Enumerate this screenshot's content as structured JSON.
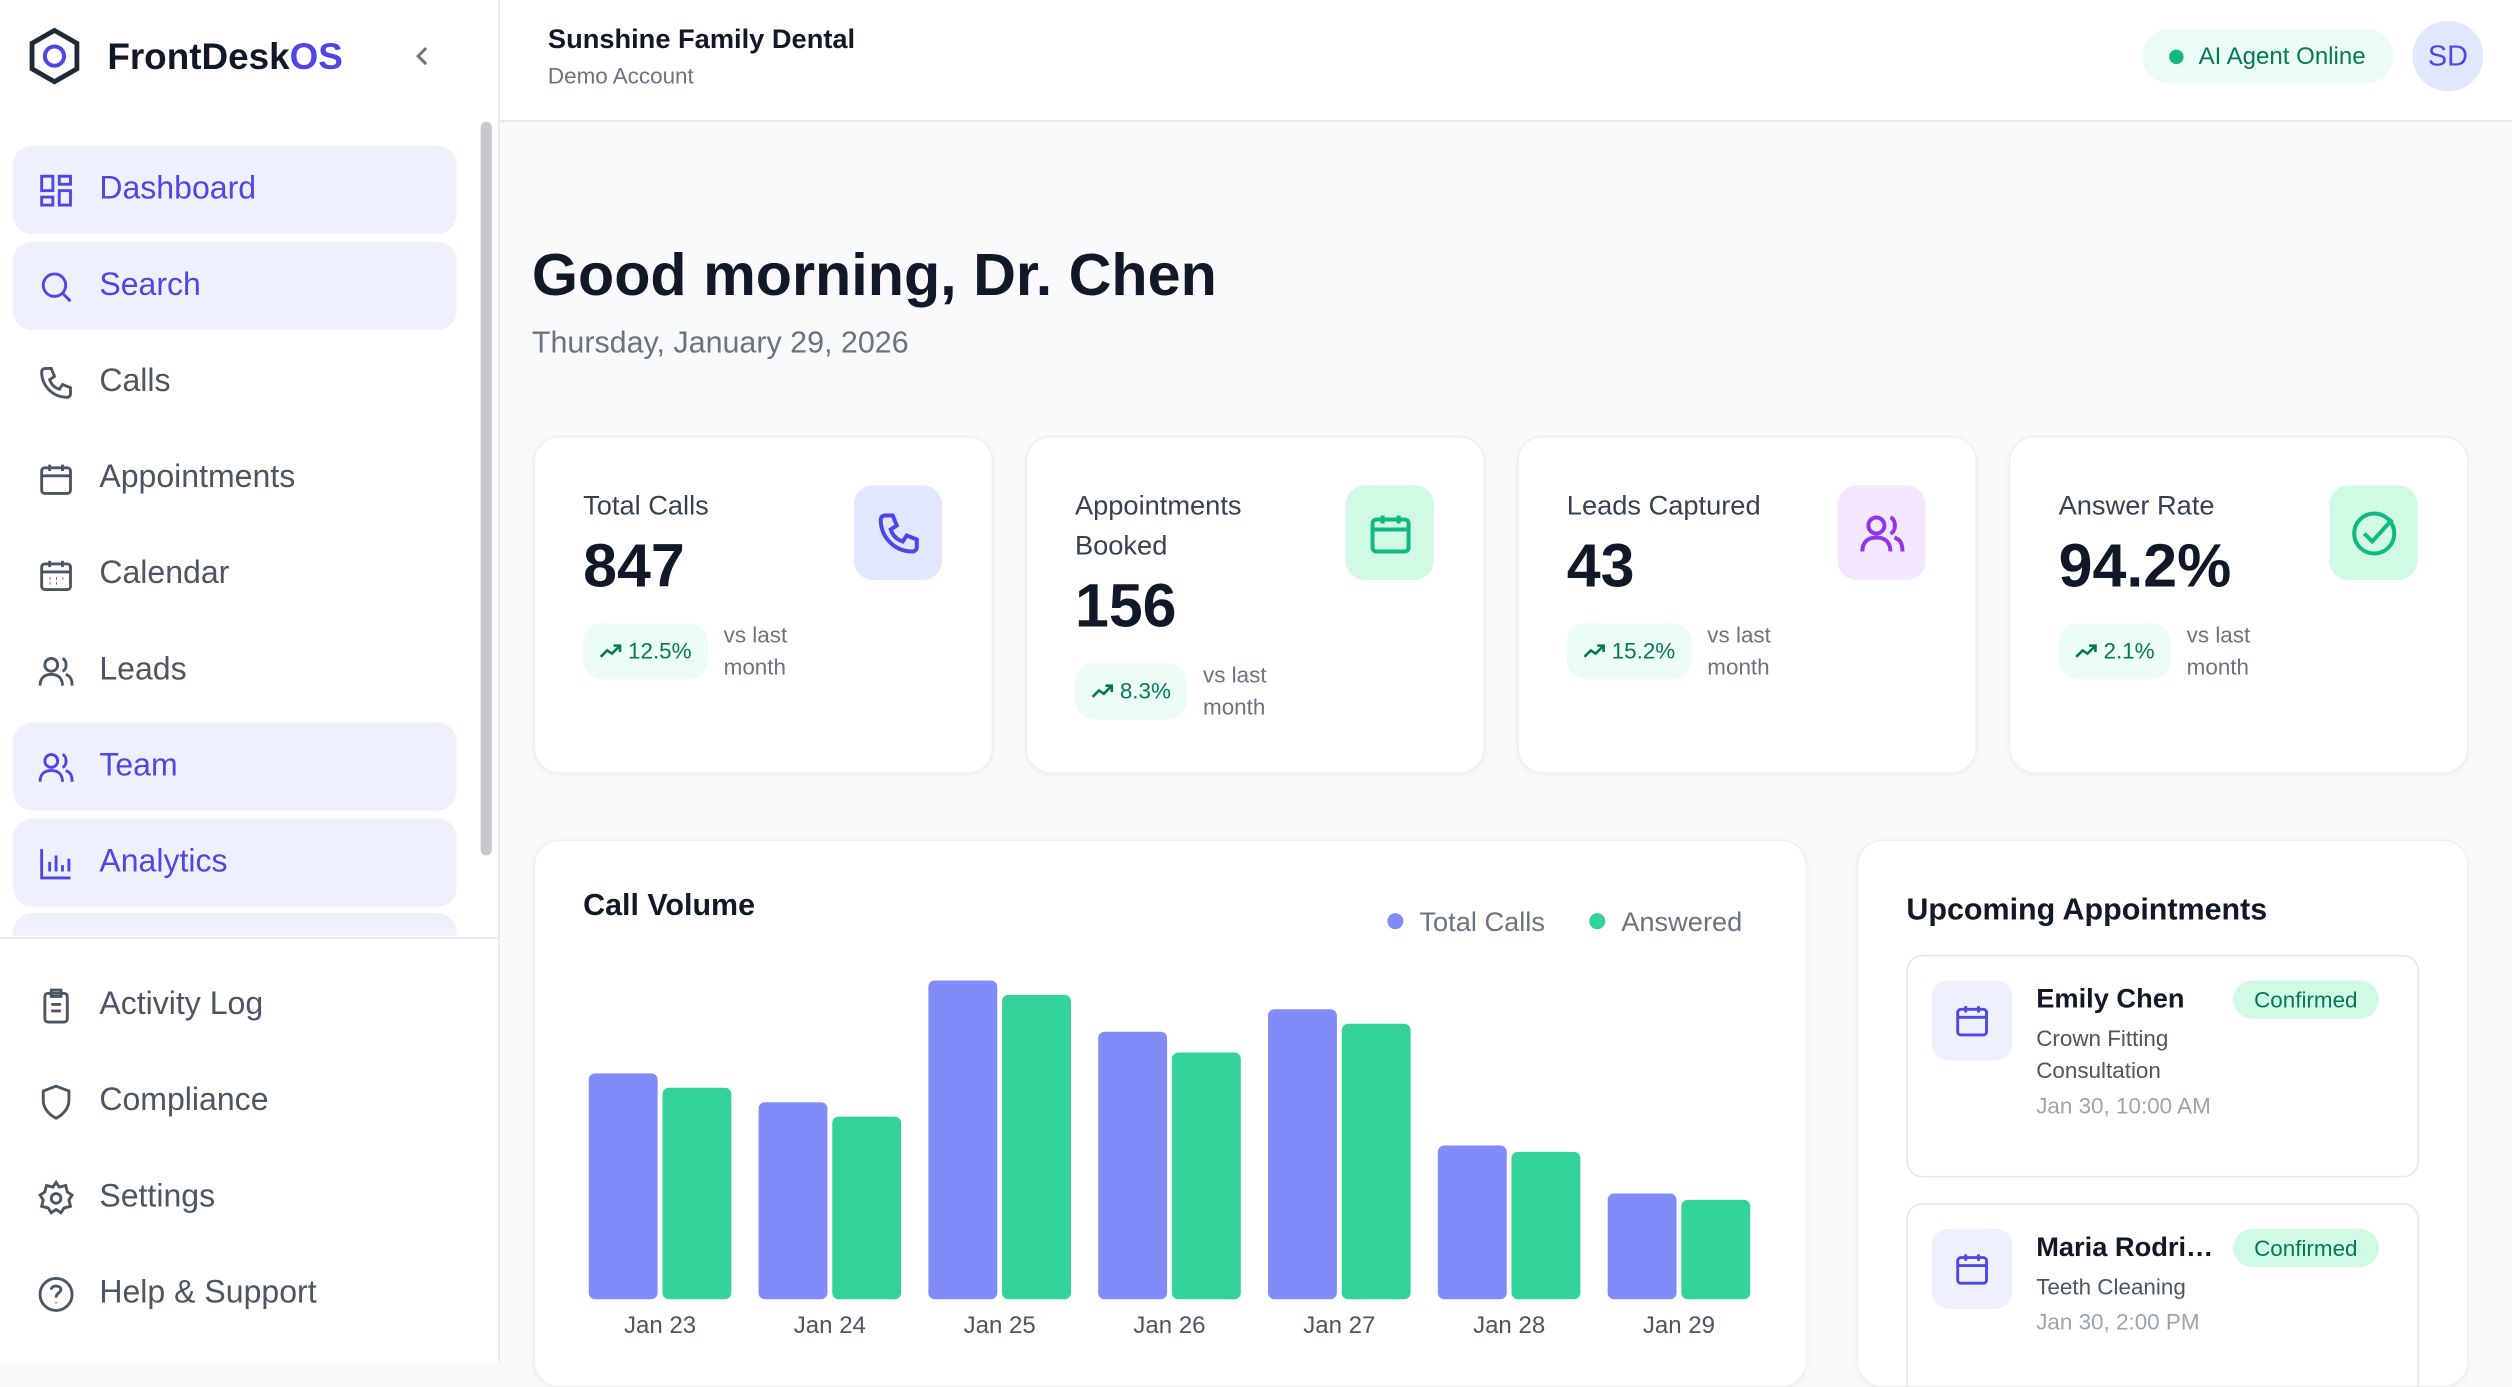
{
  "brand": {
    "name": "FrontDesk",
    "suffix": "OS"
  },
  "nav": [
    "Dashboard",
    "Search",
    "Calls",
    "Appointments",
    "Calendar",
    "Leads",
    "Team",
    "Analytics"
  ],
  "nav_bottom": [
    "Activity Log",
    "Compliance",
    "Settings",
    "Help & Support"
  ],
  "header": {
    "practice": "Sunshine Family Dental",
    "account": "Demo Account",
    "status": "AI Agent Online",
    "avatar": "SD"
  },
  "greeting": {
    "title": "Good morning, Dr. Chen",
    "date": "Thursday, January 29, 2026"
  },
  "stats": [
    {
      "label": "Total Calls",
      "value": "847",
      "change": "12.5%",
      "note": "vs last month"
    },
    {
      "label": "Appointments Booked",
      "value": "156",
      "change": "8.3%",
      "note": "vs last month"
    },
    {
      "label": "Leads Captured",
      "value": "43",
      "change": "15.2%",
      "note": "vs last month"
    },
    {
      "label": "Answer Rate",
      "value": "94.2%",
      "change": "2.1%",
      "note": "vs last month"
    }
  ],
  "chart_data": {
    "type": "bar",
    "title": "Call Volume",
    "categories": [
      "Jan 23",
      "Jan 24",
      "Jan 25",
      "Jan 26",
      "Jan 27",
      "Jan 28",
      "Jan 29"
    ],
    "series": [
      {
        "name": "Total Calls",
        "color": "#818cf8",
        "values": [
          141,
          123,
          199,
          167,
          181,
          96,
          66
        ]
      },
      {
        "name": "Answered",
        "color": "#34d399",
        "values": [
          132,
          114,
          190,
          154,
          172,
          92,
          62
        ]
      }
    ],
    "legend": "top-right"
  },
  "appointments": {
    "title": "Upcoming Appointments",
    "items": [
      {
        "name": "Emily Chen",
        "service": "Crown Fitting Consultation",
        "time": "Jan 30, 10:00 AM",
        "status": "Confirmed"
      },
      {
        "name": "Maria Rodri…",
        "service": "Teeth Cleaning",
        "time": "Jan 30, 2:00 PM",
        "status": "Confirmed"
      }
    ]
  }
}
